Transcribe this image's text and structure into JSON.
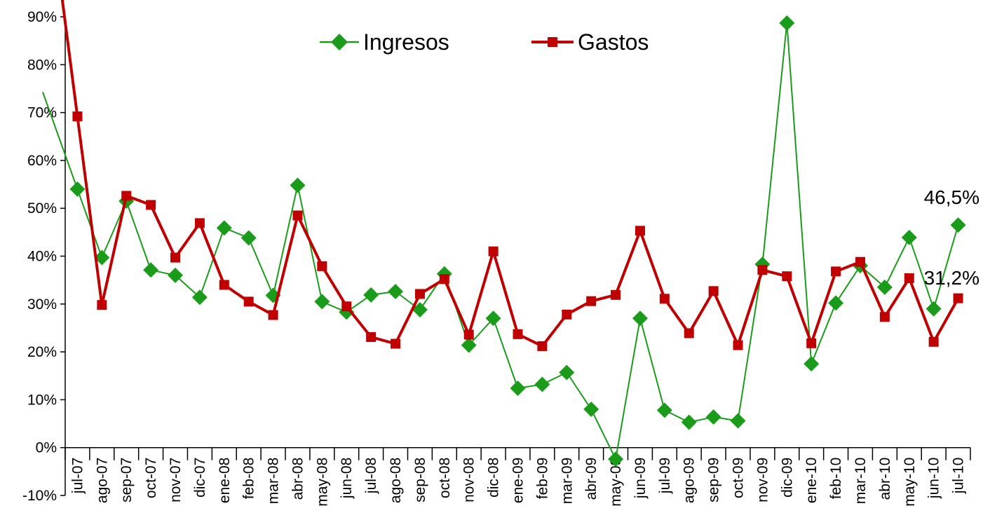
{
  "chart_data": {
    "type": "line",
    "categories": [
      "jul-07",
      "ago-07",
      "sep-07",
      "oct-07",
      "nov-07",
      "dic-07",
      "ene-08",
      "feb-08",
      "mar-08",
      "abr-08",
      "may-08",
      "jun-08",
      "jul-08",
      "ago-08",
      "sep-08",
      "oct-08",
      "nov-08",
      "dic-08",
      "ene-09",
      "feb-09",
      "mar-09",
      "abr-09",
      "may-09",
      "jun-09",
      "jul-09",
      "ago-09",
      "sep-09",
      "oct-09",
      "nov-09",
      "dic-09",
      "ene-10",
      "feb-10",
      "mar-10",
      "abr-10",
      "may-10",
      "jun-10",
      "jul-10"
    ],
    "series": [
      {
        "name": "Ingresos",
        "color": "#1a9c1a",
        "marker": "diamond",
        "values": [
          54.0,
          39.7,
          51.5,
          37.1,
          36.0,
          31.4,
          45.9,
          43.8,
          31.8,
          54.8,
          30.5,
          28.3,
          31.9,
          32.6,
          28.8,
          36.3,
          21.4,
          27.0,
          12.4,
          13.2,
          15.7,
          8.0,
          -2.4,
          27.0,
          7.8,
          5.3,
          6.4,
          5.6,
          38.3,
          88.7,
          17.5,
          30.2,
          38.0,
          33.5,
          43.9,
          29.0,
          46.5
        ]
      },
      {
        "name": "Gastos",
        "color": "#c00000",
        "marker": "square",
        "values": [
          69.2,
          29.8,
          52.6,
          50.7,
          39.7,
          46.9,
          34.0,
          30.5,
          27.7,
          48.5,
          37.9,
          29.5,
          23.1,
          21.7,
          32.1,
          35.2,
          23.6,
          41.0,
          23.7,
          21.2,
          27.8,
          30.6,
          31.9,
          45.3,
          31.1,
          23.9,
          32.7,
          21.4,
          37.1,
          35.8,
          21.8,
          36.8,
          38.8,
          27.3,
          35.4,
          22.1,
          31.2
        ]
      }
    ],
    "ylim": [
      -10,
      90
    ],
    "yticks": [
      "-10%",
      "0%",
      "10%",
      "20%",
      "30%",
      "40%",
      "50%",
      "60%",
      "70%",
      "80%",
      "90%"
    ],
    "annotations": [
      "46,5%",
      "31,2%"
    ],
    "legend_position": "top-center",
    "grid": false,
    "title": "",
    "xlabel": "",
    "ylabel": ""
  }
}
